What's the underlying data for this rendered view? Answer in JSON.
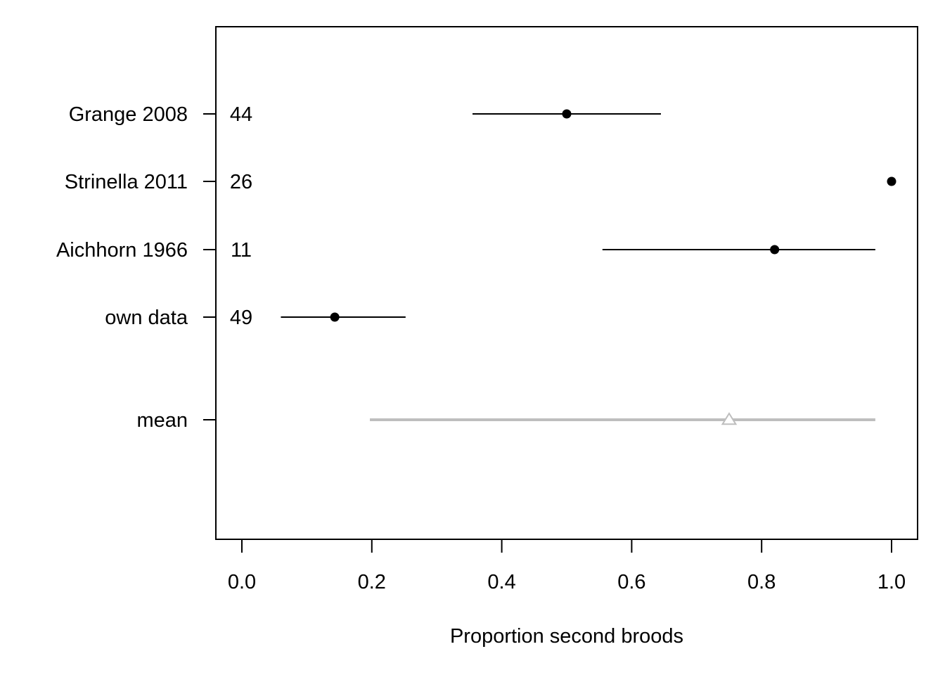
{
  "chart_data": {
    "type": "scatter",
    "subtype": "forest-plot",
    "title": "",
    "xlabel": "Proportion second broods",
    "ylabel": "",
    "xlim": [
      0.0,
      1.0
    ],
    "x_ticks": [
      "0.0",
      "0.2",
      "0.4",
      "0.6",
      "0.8",
      "1.0"
    ],
    "grid": false,
    "legend": "none",
    "rows": [
      {
        "label": "Grange 2008",
        "n": "44",
        "estimate": 0.5,
        "lower": 0.355,
        "upper": 0.645,
        "marker": "filled-circle",
        "color": "#000000"
      },
      {
        "label": "Strinella 2011",
        "n": "26",
        "estimate": 1.0,
        "lower": null,
        "upper": null,
        "marker": "filled-circle",
        "color": "#000000"
      },
      {
        "label": "Aichhorn 1966",
        "n": "11",
        "estimate": 0.82,
        "lower": 0.555,
        "upper": 0.975,
        "marker": "filled-circle",
        "color": "#000000"
      },
      {
        "label": "own data",
        "n": "49",
        "estimate": 0.143,
        "lower": 0.06,
        "upper": 0.252,
        "marker": "filled-circle",
        "color": "#000000"
      },
      {
        "label": "mean",
        "n": "",
        "estimate": 0.75,
        "lower": 0.197,
        "upper": 0.975,
        "marker": "open-triangle",
        "color": "#bebebe"
      }
    ]
  }
}
